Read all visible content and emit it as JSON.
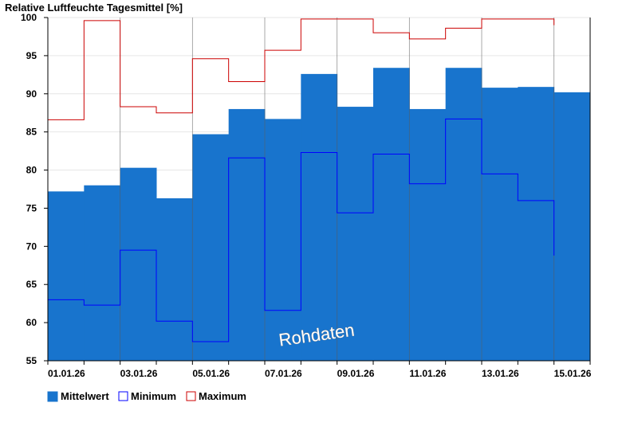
{
  "chart_data": {
    "type": "bar",
    "title": "Relative Luftfeuchte Tagesmittel [%]",
    "xlabel": "",
    "ylabel": "",
    "ylim": [
      55,
      100
    ],
    "yticks": [
      55,
      60,
      65,
      70,
      75,
      80,
      85,
      90,
      95,
      100
    ],
    "categories": [
      "01.01.26",
      "02.01.26",
      "03.01.26",
      "04.01.26",
      "05.01.26",
      "06.01.26",
      "07.01.26",
      "08.01.26",
      "09.01.26",
      "10.01.26",
      "11.01.26",
      "12.01.26",
      "13.01.26",
      "14.01.26",
      "15.01.26"
    ],
    "xtick_labels": [
      "01.01.26",
      "03.01.26",
      "05.01.26",
      "07.01.26",
      "09.01.26",
      "11.01.26",
      "13.01.26",
      "15.01.26"
    ],
    "grid": true,
    "legend_position": "bottom-left",
    "watermark": "Rohdaten",
    "series": [
      {
        "name": "Mittelwert",
        "style": "filled-step",
        "color": "#1874cd",
        "values": [
          77.2,
          78.0,
          80.3,
          76.3,
          84.7,
          88.0,
          86.7,
          92.6,
          88.3,
          93.4,
          88.0,
          93.4,
          90.8,
          90.9,
          90.2
        ]
      },
      {
        "name": "Minimum",
        "style": "step-line",
        "color": "#0000ff",
        "values": [
          63.0,
          62.3,
          69.5,
          60.2,
          57.5,
          81.6,
          61.6,
          82.3,
          74.4,
          82.1,
          78.2,
          86.7,
          79.5,
          76.0,
          68.8
        ]
      },
      {
        "name": "Maximum",
        "style": "step-line",
        "color": "#cc0000",
        "values": [
          86.6,
          99.6,
          88.3,
          87.5,
          94.6,
          91.6,
          95.7,
          99.8,
          99.8,
          98.0,
          97.2,
          98.6,
          99.8,
          99.8,
          99.0
        ]
      }
    ]
  }
}
